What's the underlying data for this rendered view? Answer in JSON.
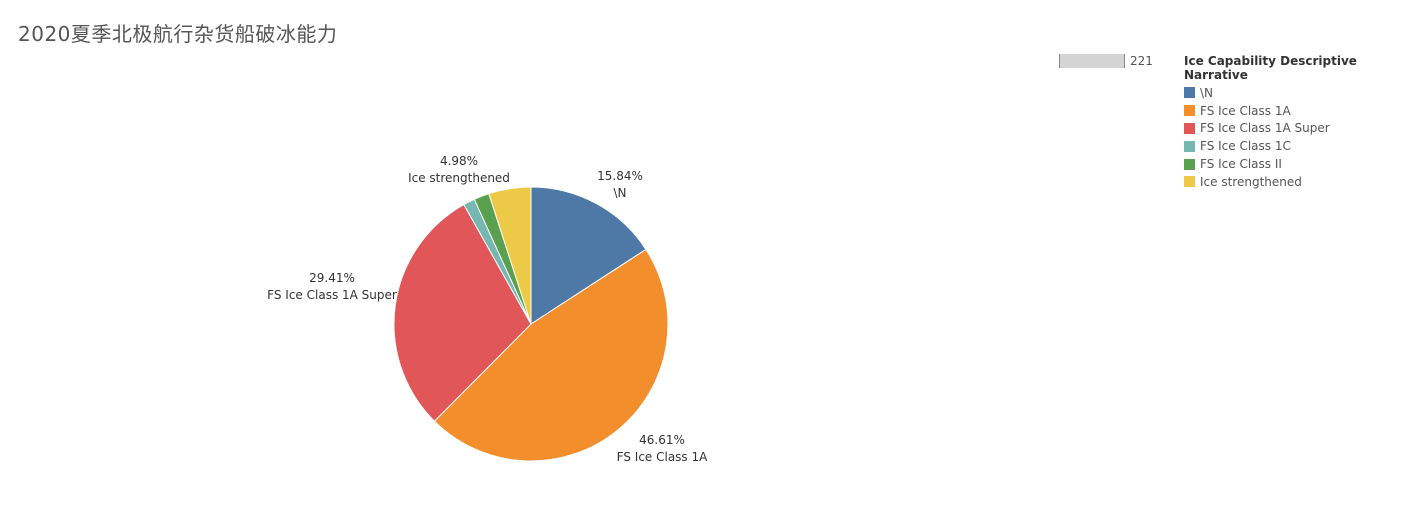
{
  "title": "2020夏季北极航行杂货船破冰能力",
  "size_legend": {
    "value": "221"
  },
  "legend": {
    "title": "Ice Capability Descriptive Narrative",
    "items": [
      {
        "label": "\\N",
        "color": "#4e79a7"
      },
      {
        "label": "FS Ice Class 1A",
        "color": "#f28e2b"
      },
      {
        "label": "FS Ice Class 1A Super",
        "color": "#e15759"
      },
      {
        "label": "FS Ice Class 1C",
        "color": "#76b7b2"
      },
      {
        "label": "FS Ice Class II",
        "color": "#59a14f"
      },
      {
        "label": "Ice strengthened",
        "color": "#edc948"
      }
    ]
  },
  "chart_data": {
    "type": "pie",
    "title": "2020夏季北极航行杂货船破冰能力",
    "slices": [
      {
        "label": "\\N",
        "value": 15.84,
        "value_label": "15.84%",
        "color": "#4e79a7",
        "show_label": true
      },
      {
        "label": "FS Ice Class 1A",
        "value": 46.61,
        "value_label": "46.61%",
        "color": "#f28e2b",
        "show_label": true
      },
      {
        "label": "FS Ice Class 1A Super",
        "value": 29.41,
        "value_label": "29.41%",
        "color": "#e15759",
        "show_label": true
      },
      {
        "label": "FS Ice Class 1C",
        "value": 1.36,
        "value_label": "",
        "color": "#76b7b2",
        "show_label": false
      },
      {
        "label": "FS Ice Class II",
        "value": 1.81,
        "value_label": "",
        "color": "#59a14f",
        "show_label": false
      },
      {
        "label": "Ice strengthened",
        "value": 4.98,
        "value_label": "4.98%",
        "color": "#edc948",
        "show_label": true
      }
    ]
  }
}
